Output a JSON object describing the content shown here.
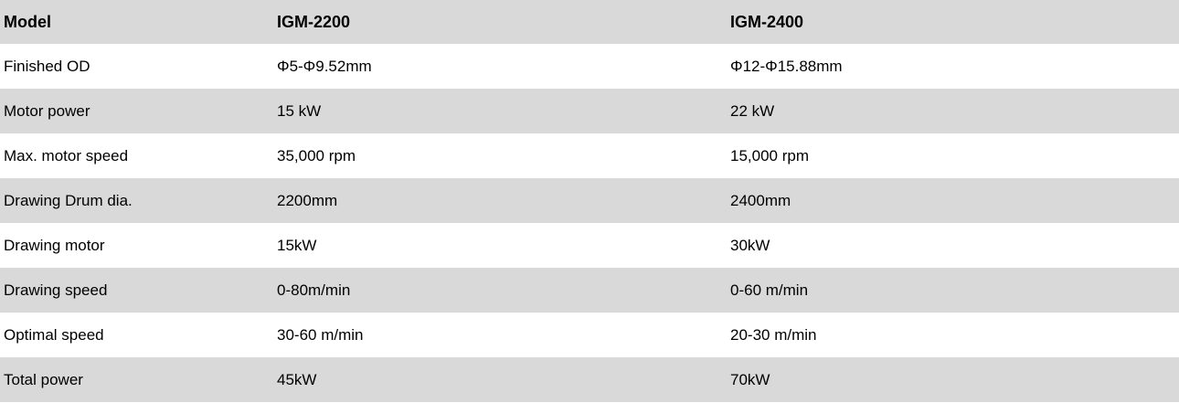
{
  "table": {
    "header": [
      "Model",
      "IGM-2200",
      "IGM-2400"
    ],
    "rows": [
      [
        "Finished OD",
        "Φ5-Φ9.52mm",
        "Φ12-Φ15.88mm"
      ],
      [
        "Motor power",
        "15 kW",
        "22 kW"
      ],
      [
        "Max. motor speed",
        "35,000 rpm",
        "15,000 rpm"
      ],
      [
        "Drawing Drum dia.",
        "2200mm",
        "2400mm"
      ],
      [
        "Drawing motor",
        "15kW",
        "30kW"
      ],
      [
        "Drawing speed",
        "0-80m/min",
        "0-60 m/min"
      ],
      [
        "Optimal speed",
        "30-60 m/min",
        "20-30 m/min"
      ],
      [
        "Total power",
        "45kW",
        "70kW"
      ]
    ]
  },
  "colors": {
    "stripe": "#d9d9d9",
    "white": "#ffffff"
  }
}
